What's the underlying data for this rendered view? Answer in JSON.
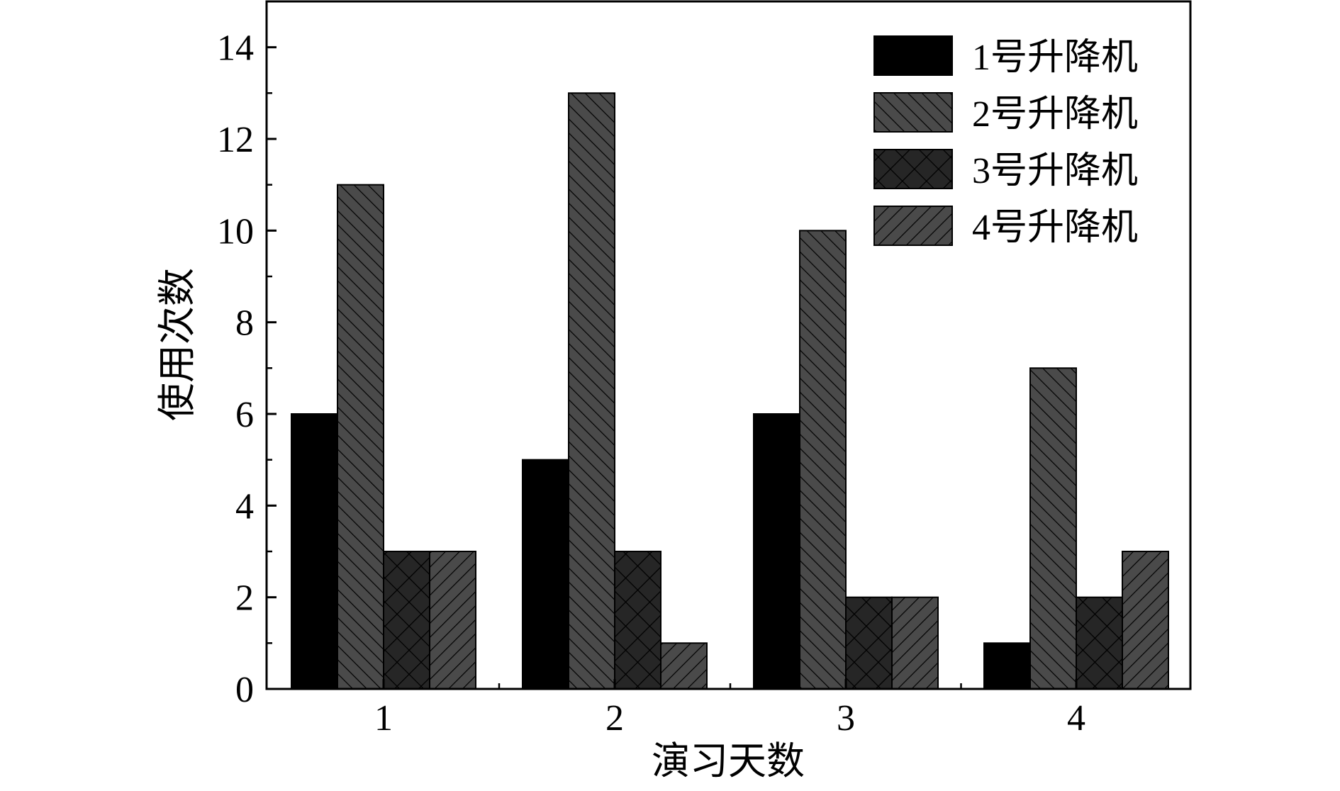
{
  "chart_data": {
    "type": "bar",
    "xlabel": "演习天数",
    "ylabel": "使用次数",
    "ylim": [
      0,
      15
    ],
    "yticks": [
      0,
      2,
      4,
      6,
      8,
      10,
      12,
      14
    ],
    "categories": [
      "1",
      "2",
      "3",
      "4"
    ],
    "legend_position": "top-right",
    "grid": false,
    "series": [
      {
        "name": "1号升降机",
        "values": [
          6,
          5,
          6,
          1
        ],
        "color": "#000000",
        "pattern": "solid"
      },
      {
        "name": "2号升降机",
        "values": [
          11,
          13,
          10,
          7
        ],
        "color": "#4a4a4a",
        "pattern": "backslash"
      },
      {
        "name": "3号升降机",
        "values": [
          3,
          3,
          2,
          2
        ],
        "color": "#262626",
        "pattern": "crosshatch"
      },
      {
        "name": "4号升降机",
        "values": [
          3,
          1,
          2,
          3
        ],
        "color": "#4a4a4a",
        "pattern": "slash"
      }
    ]
  }
}
